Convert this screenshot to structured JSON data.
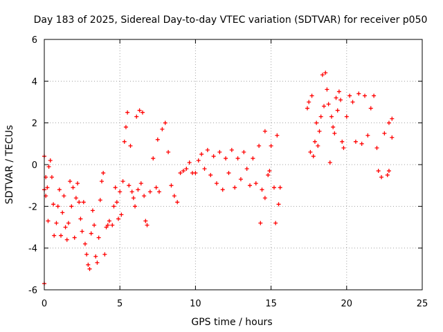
{
  "chart_data": {
    "type": "scatter",
    "title": "Day 183 of 2025, Sidereal Day-to-day VTEC variation (SDTVAR) for receiver p050",
    "xlabel": "GPS time / hours",
    "ylabel": "SDTVAR / TECUs",
    "xlim": [
      0,
      25
    ],
    "ylim": [
      -6,
      6
    ],
    "x_ticks": [
      "0",
      "5",
      "10",
      "15",
      "20",
      "25"
    ],
    "y_ticks": [
      "-6",
      "-4",
      "-2",
      "0",
      "2",
      "4",
      "6"
    ],
    "grid": true,
    "legend": "none",
    "marker": "plus",
    "color": "#ff0000",
    "series": [
      {
        "points": [
          [
            0.0,
            0.4
          ],
          [
            0.0,
            -1.2
          ],
          [
            0.0,
            -5.7
          ],
          [
            0.1,
            -0.6
          ],
          [
            0.1,
            -1.5
          ],
          [
            0.2,
            -1.1
          ],
          [
            0.25,
            -2.7
          ],
          [
            0.3,
            -0.1
          ],
          [
            0.4,
            0.2
          ],
          [
            0.5,
            -0.6
          ],
          [
            0.6,
            -1.9
          ],
          [
            0.65,
            -3.4
          ],
          [
            0.8,
            -2.8
          ],
          [
            0.9,
            -2.0
          ],
          [
            1.0,
            -1.2
          ],
          [
            1.1,
            -3.4
          ],
          [
            1.2,
            -2.3
          ],
          [
            1.3,
            -1.5
          ],
          [
            1.4,
            -3.0
          ],
          [
            1.5,
            -3.6
          ],
          [
            1.6,
            -2.8
          ],
          [
            1.7,
            -0.8
          ],
          [
            1.8,
            -2.0
          ],
          [
            1.9,
            -1.1
          ],
          [
            2.0,
            -3.5
          ],
          [
            2.1,
            -1.6
          ],
          [
            2.2,
            -0.9
          ],
          [
            2.3,
            -1.8
          ],
          [
            2.4,
            -2.6
          ],
          [
            2.5,
            -3.2
          ],
          [
            2.6,
            -1.8
          ],
          [
            2.7,
            -3.8
          ],
          [
            2.8,
            -4.3
          ],
          [
            2.9,
            -4.8
          ],
          [
            3.0,
            -5.0
          ],
          [
            3.1,
            -3.3
          ],
          [
            3.2,
            -2.2
          ],
          [
            3.3,
            -2.9
          ],
          [
            3.4,
            -4.4
          ],
          [
            3.5,
            -4.7
          ],
          [
            3.6,
            -3.5
          ],
          [
            3.7,
            -1.7
          ],
          [
            3.8,
            -0.8
          ],
          [
            3.9,
            -0.4
          ],
          [
            4.0,
            -4.3
          ],
          [
            4.1,
            -3.0
          ],
          [
            4.2,
            -2.9
          ],
          [
            4.3,
            -2.7
          ],
          [
            4.5,
            -2.9
          ],
          [
            4.6,
            -2.0
          ],
          [
            4.7,
            -1.1
          ],
          [
            4.8,
            -1.8
          ],
          [
            4.9,
            -2.6
          ],
          [
            5.0,
            -1.3
          ],
          [
            5.1,
            -2.4
          ],
          [
            5.2,
            -0.8
          ],
          [
            5.3,
            1.1
          ],
          [
            5.4,
            1.8
          ],
          [
            5.5,
            2.5
          ],
          [
            5.6,
            -1.0
          ],
          [
            5.7,
            0.9
          ],
          [
            5.8,
            -1.3
          ],
          [
            5.9,
            -1.6
          ],
          [
            6.0,
            -2.0
          ],
          [
            6.1,
            2.3
          ],
          [
            6.2,
            -1.2
          ],
          [
            6.3,
            2.6
          ],
          [
            6.4,
            -0.9
          ],
          [
            6.5,
            2.5
          ],
          [
            6.6,
            -1.5
          ],
          [
            6.7,
            -2.7
          ],
          [
            6.8,
            -2.9
          ],
          [
            7.0,
            -1.3
          ],
          [
            7.2,
            0.3
          ],
          [
            7.4,
            -1.1
          ],
          [
            7.5,
            1.2
          ],
          [
            7.6,
            -1.3
          ],
          [
            7.8,
            1.7
          ],
          [
            8.0,
            2.0
          ],
          [
            8.2,
            0.6
          ],
          [
            8.4,
            -1.0
          ],
          [
            8.6,
            -1.5
          ],
          [
            8.8,
            -1.8
          ],
          [
            9.0,
            -0.4
          ],
          [
            9.2,
            -0.3
          ],
          [
            9.4,
            -0.2
          ],
          [
            9.6,
            0.1
          ],
          [
            9.8,
            -0.4
          ],
          [
            10.0,
            -0.4
          ],
          [
            10.2,
            0.2
          ],
          [
            10.4,
            0.5
          ],
          [
            10.6,
            -0.2
          ],
          [
            10.8,
            0.7
          ],
          [
            11.0,
            -0.5
          ],
          [
            11.2,
            0.4
          ],
          [
            11.4,
            -0.9
          ],
          [
            11.6,
            0.6
          ],
          [
            11.8,
            -1.2
          ],
          [
            12.0,
            0.3
          ],
          [
            12.2,
            -0.4
          ],
          [
            12.4,
            0.7
          ],
          [
            12.6,
            -1.1
          ],
          [
            12.8,
            0.3
          ],
          [
            13.0,
            -0.7
          ],
          [
            13.2,
            0.6
          ],
          [
            13.4,
            -0.2
          ],
          [
            13.6,
            -1.0
          ],
          [
            13.8,
            0.3
          ],
          [
            14.0,
            -0.9
          ],
          [
            14.2,
            0.9
          ],
          [
            14.4,
            -1.2
          ],
          [
            14.6,
            1.6
          ],
          [
            14.8,
            -0.5
          ],
          [
            15.0,
            0.9
          ],
          [
            15.2,
            -1.1
          ],
          [
            15.4,
            1.4
          ],
          [
            14.3,
            -2.8
          ],
          [
            14.6,
            -1.6
          ],
          [
            14.9,
            -0.3
          ],
          [
            15.3,
            -2.8
          ],
          [
            15.5,
            -1.9
          ],
          [
            15.6,
            -1.1
          ],
          [
            17.4,
            2.7
          ],
          [
            17.5,
            3.0
          ],
          [
            17.6,
            0.6
          ],
          [
            17.7,
            3.3
          ],
          [
            17.8,
            0.4
          ],
          [
            17.9,
            1.1
          ],
          [
            18.0,
            2.0
          ],
          [
            18.1,
            0.9
          ],
          [
            18.2,
            1.6
          ],
          [
            18.3,
            2.3
          ],
          [
            18.4,
            4.3
          ],
          [
            18.5,
            2.8
          ],
          [
            18.6,
            4.4
          ],
          [
            18.7,
            3.6
          ],
          [
            18.8,
            2.9
          ],
          [
            18.9,
            0.1
          ],
          [
            19.0,
            2.3
          ],
          [
            19.1,
            1.8
          ],
          [
            19.2,
            1.5
          ],
          [
            19.3,
            3.2
          ],
          [
            19.4,
            2.6
          ],
          [
            19.5,
            3.5
          ],
          [
            19.6,
            3.1
          ],
          [
            19.7,
            1.1
          ],
          [
            19.8,
            0.8
          ],
          [
            20.0,
            2.3
          ],
          [
            20.2,
            3.3
          ],
          [
            20.4,
            3.0
          ],
          [
            20.6,
            1.1
          ],
          [
            20.8,
            3.4
          ],
          [
            21.0,
            1.0
          ],
          [
            21.2,
            3.3
          ],
          [
            21.4,
            1.4
          ],
          [
            21.6,
            2.7
          ],
          [
            21.8,
            3.3
          ],
          [
            22.0,
            0.8
          ],
          [
            22.1,
            -0.3
          ],
          [
            22.3,
            -0.6
          ],
          [
            22.5,
            1.5
          ],
          [
            22.7,
            -0.5
          ],
          [
            22.8,
            -0.3
          ],
          [
            22.8,
            2.0
          ],
          [
            23.0,
            1.3
          ],
          [
            23.0,
            2.2
          ]
        ]
      }
    ]
  }
}
